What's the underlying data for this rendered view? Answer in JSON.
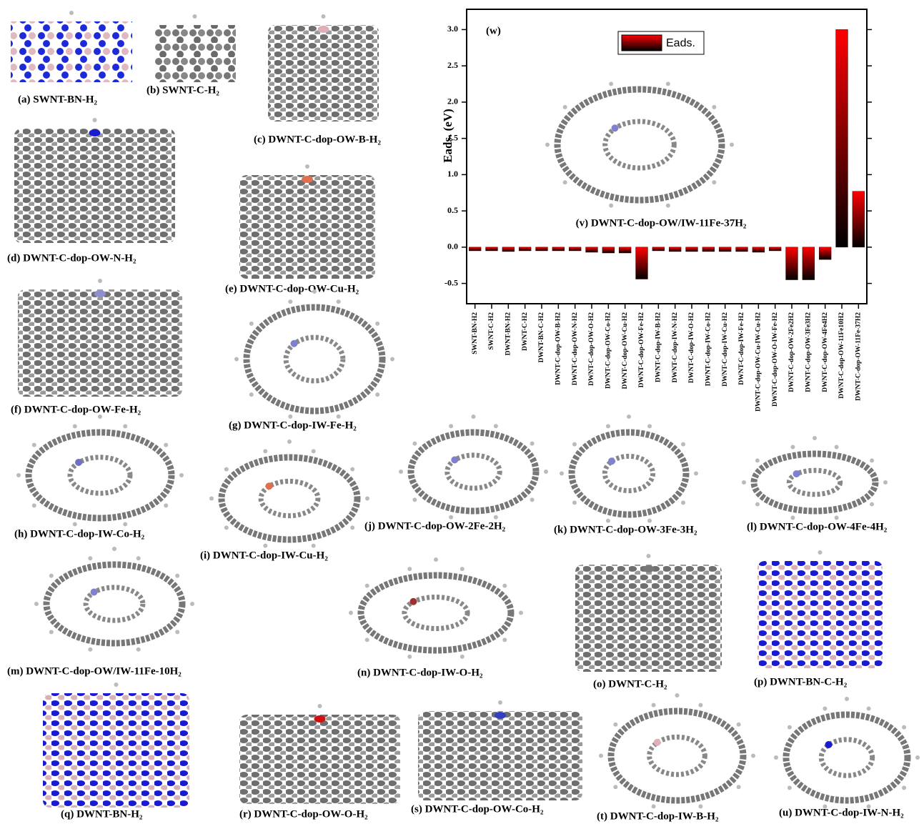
{
  "figure_panels": [
    "(a) SWNT-BN-H₂",
    "(b) SWNT-C-H₂",
    "(c) DWNT-C-dop-OW-B-H₂",
    "(d) DWNT-C-dop-OW-N-H₂",
    "(e) DWNT-C-dop-OW-Cu-H₂",
    "(f) DWNT-C-dop-OW-Fe-H₂",
    "(g) DWNT-C-dop-IW-Fe-H₂",
    "(h) DWNT-C-dop-IW-Co-H₂",
    "(i) DWNT-C-dop-IW-Cu-H₂",
    "(j) DWNT-C-dop-OW-2Fe-2H₂",
    "(k) DWNT-C-dop-OW-3Fe-3H₂",
    "(l) DWNT-C-dop-OW-4Fe-4H₂",
    "(m) DWNT-C-dop-OW/IW-11Fe-10H₂",
    "(n) DWNT-C-dop-IW-O-H₂",
    "(o) DWNT-C-H₂",
    "(p) DWNT-BN-C-H₂",
    "(q) DWNT-BN-H₂",
    "(r) DWNT-C-dop-OW-O-H₂",
    "(s) DWNT-C-dop-OW-Co-H₂",
    "(t) DWNT-C-dop-IW-B-H₂",
    "(u) DWNT-C-dop-IW-N-H₂"
  ],
  "chart_data": {
    "type": "bar",
    "panel_label": "(w)",
    "inset_label": "(v) DWNT-C-dop-OW/IW-11Fe-37H₂",
    "y_label": "Eads. (eV)",
    "categories": [
      "SWNT-BN-H2",
      "SWNT-C-H2",
      "DWNT-BN-H2",
      "DWNT-C-H2",
      "DWNT-BN-C-H2",
      "DWNT-C-dop-OW-B-H2",
      "DWNT-C-dop-OW-N-H2",
      "DWNT-C-dop-OW-O-H2",
      "DWNT-C-dop-OW-Co-H2",
      "DWNT-C-dop-OW-Cu-H2",
      "DWNT-C-dop-OW-Fe-H2",
      "DWNT-C-dop-IW-B-H2",
      "DWNT-C-dop-IW-N-H2",
      "DWNT-C-dop-IW-O-H2",
      "DWNT-C-dop-IW-Co-H2",
      "DWNT-C-dop-IW-Cu-H2",
      "DWNT-C-dop-IW-Fe-H2",
      "DWNT-C-dop-OW-Cu-IW-Cu-H2",
      "DWNT-C-dop-OW-O-IW-Fe-H2",
      "DWNT-C-dop-OW-2Fe2H2",
      "DWNT-C-dop-OW-3Fe3H2",
      "DWNT-C-dop-OW-4Fe4H2",
      "DWNT-C-dop-OW-11Fe10H2",
      "DWNT-C-dop-OW-11Fe-37H2"
    ],
    "series": [
      {
        "name": "Eads.",
        "color": "#ff0000",
        "values": [
          -0.05,
          -0.05,
          -0.06,
          -0.05,
          -0.05,
          -0.05,
          -0.05,
          -0.07,
          -0.08,
          -0.08,
          -0.44,
          -0.05,
          -0.06,
          -0.06,
          -0.06,
          -0.06,
          -0.06,
          -0.07,
          -0.05,
          -0.45,
          -0.45,
          -0.17,
          3.0,
          0.77
        ]
      }
    ],
    "ylim": [
      -0.78,
      3.28
    ],
    "yticks": [
      -0.5,
      {
        "value": 0,
        "label": "0.0"
      },
      0.5,
      {
        "value": 1,
        "label": "1.0"
      },
      1.5,
      {
        "value": 2,
        "label": "2.0"
      },
      2.5,
      {
        "value": 3,
        "label": "3.0"
      }
    ]
  }
}
